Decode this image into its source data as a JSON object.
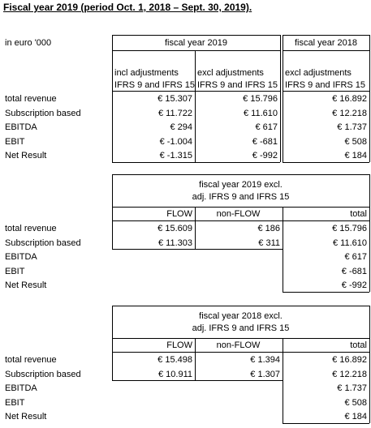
{
  "title": "Fiscal year 2019 (period Oct. 1, 2018 – Sept. 30, 2019).",
  "table1": {
    "unit": "in euro '000",
    "groups": [
      "fiscal year 2019",
      "fiscal year 2018"
    ],
    "columns": [
      [
        "incl adjustments",
        "IFRS 9 and IFRS 15"
      ],
      [
        "excl adjustments",
        "IFRS 9 and IFRS 15"
      ],
      [
        "excl adjustments",
        "IFRS 9 and IFRS 15"
      ]
    ],
    "rows": [
      {
        "label": "total revenue",
        "values": [
          "€ 15.307",
          "€ 15.796",
          "€ 16.892"
        ]
      },
      {
        "label": "Subscription based",
        "values": [
          "€ 11.722",
          "€ 11.610",
          "€ 12.218"
        ]
      },
      {
        "label": "EBITDA",
        "values": [
          "€ 294",
          "€ 617",
          "€ 1.737"
        ]
      },
      {
        "label": "EBIT",
        "values": [
          "€ -1.004",
          "€ -681",
          "€ 508"
        ]
      },
      {
        "label": "Net Result",
        "values": [
          "€ -1.315",
          "€ -992",
          "€ 184"
        ]
      }
    ]
  },
  "table2": {
    "heading": [
      "fiscal year 2019 excl.",
      "adj. IFRS 9 and IFRS 15"
    ],
    "columns": [
      "FLOW",
      "non-FLOW",
      "total"
    ],
    "rows": [
      {
        "label": "total revenue",
        "values": [
          "€ 15.609",
          "€ 186",
          "€ 15.796"
        ]
      },
      {
        "label": "Subscription based",
        "values": [
          "€ 11.303",
          "€ 311",
          "€ 11.610"
        ]
      },
      {
        "label": "EBITDA",
        "values": [
          null,
          null,
          "€ 617"
        ]
      },
      {
        "label": "EBIT",
        "values": [
          null,
          null,
          "€ -681"
        ]
      },
      {
        "label": "Net Result",
        "values": [
          null,
          null,
          "€ -992"
        ]
      }
    ]
  },
  "table3": {
    "heading": [
      "fiscal year 2018 excl.",
      "adj. IFRS 9 and IFRS 15"
    ],
    "columns": [
      "FLOW",
      "non-FLOW",
      "total"
    ],
    "rows": [
      {
        "label": "total revenue",
        "values": [
          "€ 15.498",
          "€ 1.394",
          "€ 16.892"
        ]
      },
      {
        "label": "Subscription based",
        "values": [
          "€ 10.911",
          "€ 1.307",
          "€ 12.218"
        ]
      },
      {
        "label": "EBITDA",
        "values": [
          null,
          null,
          "€ 1.737"
        ]
      },
      {
        "label": "EBIT",
        "values": [
          null,
          null,
          "€ 508"
        ]
      },
      {
        "label": "Net Result",
        "values": [
          null,
          null,
          "€ 184"
        ]
      }
    ]
  }
}
